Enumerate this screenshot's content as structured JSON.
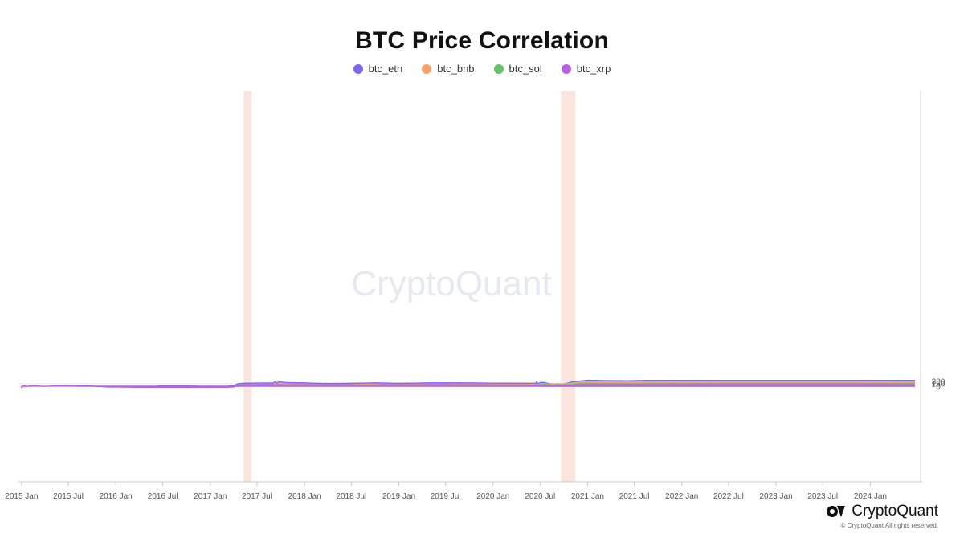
{
  "chart_data": {
    "type": "area",
    "title": "BTC Price Correlation",
    "xlabel": "",
    "ylabel": "",
    "ylim": [
      -55,
      170
    ],
    "xlim": [
      "2014-12-20",
      "2024-07-20"
    ],
    "y_ticks": [
      0,
      150,
      300
    ],
    "x_ticks": [
      "2015 Jan",
      "2015 Jul",
      "2016 Jan",
      "2016 Jul",
      "2017 Jan",
      "2017 Jul",
      "2018 Jan",
      "2018 Jul",
      "2019 Jan",
      "2019 Jul",
      "2020 Jan",
      "2020 Jul",
      "2021 Jan",
      "2021 Jul",
      "2022 Jan",
      "2022 Jul",
      "2023 Jan",
      "2023 Jul",
      "2024 Jan"
    ],
    "x_tick_dates": [
      "2015-01-01",
      "2015-07-01",
      "2016-01-01",
      "2016-07-01",
      "2017-01-01",
      "2017-07-01",
      "2018-01-01",
      "2018-07-01",
      "2019-01-01",
      "2019-07-01",
      "2020-01-01",
      "2020-07-01",
      "2021-01-01",
      "2021-07-01",
      "2022-01-01",
      "2022-07-01",
      "2023-01-01",
      "2023-07-01",
      "2024-01-01"
    ],
    "stacked": true,
    "grid": true,
    "legend_position": "top-center",
    "highlight_bands": [
      [
        "2017-05-10",
        "2017-06-10"
      ],
      [
        "2020-09-20",
        "2020-11-15"
      ]
    ],
    "highlight_color": "#f9e0d8",
    "series": [
      {
        "name": "btc_eth",
        "color": "#7b68ee",
        "points": [
          [
            "2015-08-01",
            0
          ],
          [
            "2015-08-06",
            0.42
          ],
          [
            "2015-08-10",
            0.26
          ],
          [
            "2015-08-20",
            0.25
          ],
          [
            "2015-09-01",
            0.31
          ],
          [
            "2015-09-15",
            0.28
          ],
          [
            "2015-10-01",
            0.05
          ],
          [
            "2015-10-20",
            -0.15
          ],
          [
            "2015-11-15",
            -0.35
          ],
          [
            "2015-12-15",
            -0.53
          ],
          [
            "2016-01-10",
            -0.45
          ],
          [
            "2016-02-15",
            -0.5
          ],
          [
            "2016-04-01",
            -0.6
          ],
          [
            "2016-05-15",
            -0.3
          ],
          [
            "2016-06-15",
            0.12
          ],
          [
            "2016-08-01",
            0.14
          ],
          [
            "2016-10-01",
            0.13
          ],
          [
            "2016-11-01",
            0.05
          ],
          [
            "2016-12-01",
            0
          ],
          [
            "2017-01-01",
            0.02
          ],
          [
            "2017-02-15",
            -0.05
          ],
          [
            "2017-03-10",
            0.02
          ],
          [
            "2017-04-01",
            0.45
          ],
          [
            "2017-04-20",
            1.5
          ],
          [
            "2017-05-15",
            1.7
          ],
          [
            "2017-06-30",
            1.83
          ],
          [
            "2017-08-01",
            1.87
          ],
          [
            "2017-09-01",
            1.85
          ],
          [
            "2017-09-10",
            2.8
          ],
          [
            "2017-09-15",
            1.6
          ],
          [
            "2017-09-22",
            2.6
          ],
          [
            "2017-09-27",
            2.7
          ],
          [
            "2017-10-10",
            2.3
          ],
          [
            "2017-11-01",
            2.05
          ],
          [
            "2017-12-01",
            1.97
          ],
          [
            "2018-01-01",
            1.9
          ],
          [
            "2018-02-01",
            1.75
          ],
          [
            "2018-03-01",
            1.62
          ],
          [
            "2018-04-15",
            1.6
          ],
          [
            "2018-06-01",
            1.62
          ],
          [
            "2018-08-01",
            1.73
          ],
          [
            "2018-09-01",
            1.85
          ],
          [
            "2018-10-01",
            1.92
          ],
          [
            "2018-11-01",
            1.88
          ],
          [
            "2018-12-01",
            1.75
          ],
          [
            "2019-01-15",
            1.7
          ],
          [
            "2019-03-01",
            1.77
          ],
          [
            "2019-05-01",
            1.9
          ],
          [
            "2019-07-01",
            1.9
          ],
          [
            "2019-09-01",
            1.92
          ],
          [
            "2019-11-01",
            1.87
          ],
          [
            "2020-01-01",
            1.8
          ],
          [
            "2020-03-01",
            1.72
          ],
          [
            "2020-05-01",
            1.7
          ],
          [
            "2020-06-15",
            1.72
          ],
          [
            "2020-06-18",
            2.75
          ],
          [
            "2020-06-22",
            1.45
          ],
          [
            "2020-07-01",
            2.1
          ],
          [
            "2020-07-15",
            2.25
          ],
          [
            "2020-08-01",
            1.6
          ],
          [
            "2020-08-20",
            1.2
          ],
          [
            "2020-09-01",
            1.35
          ],
          [
            "2020-10-01",
            1.3
          ],
          [
            "2020-11-01",
            2.4
          ],
          [
            "2020-12-01",
            3.0
          ],
          [
            "2021-01-01",
            3.45
          ],
          [
            "2021-02-01",
            3.35
          ],
          [
            "2021-03-01",
            3.25
          ],
          [
            "2021-04-01",
            3.22
          ],
          [
            "2021-05-01",
            3.2
          ],
          [
            "2021-06-01",
            3.12
          ],
          [
            "2021-06-20",
            3.15
          ],
          [
            "2021-07-15",
            3.3
          ],
          [
            "2021-09-01",
            3.38
          ],
          [
            "2021-11-01",
            3.38
          ],
          [
            "2022-01-01",
            3.38
          ],
          [
            "2022-06-01",
            3.39
          ],
          [
            "2023-01-01",
            3.4
          ],
          [
            "2023-06-01",
            3.4
          ],
          [
            "2024-01-01",
            3.4
          ],
          [
            "2024-04-01",
            3.38
          ],
          [
            "2024-06-20",
            3.36
          ]
        ]
      },
      {
        "name": "btc_bnb",
        "color": "#f4a268",
        "points": [
          [
            "2017-09-01",
            0.85
          ],
          [
            "2017-09-08",
            1.6
          ],
          [
            "2017-09-13",
            0.8
          ],
          [
            "2017-09-22",
            1.7
          ],
          [
            "2017-10-05",
            1.35
          ],
          [
            "2017-11-01",
            1.1
          ],
          [
            "2017-12-01",
            1.05
          ],
          [
            "2018-01-01",
            0.98
          ],
          [
            "2018-02-01",
            0.9
          ],
          [
            "2018-03-01",
            0.75
          ],
          [
            "2018-04-15",
            0.72
          ],
          [
            "2018-06-01",
            0.78
          ],
          [
            "2018-07-01",
            0.82
          ],
          [
            "2018-08-01",
            0.98
          ],
          [
            "2018-09-01",
            1.07
          ],
          [
            "2018-10-01",
            1.02
          ],
          [
            "2018-11-01",
            0.9
          ],
          [
            "2018-12-01",
            0.85
          ],
          [
            "2019-01-01",
            0.95
          ],
          [
            "2019-02-01",
            1.0
          ],
          [
            "2019-03-01",
            1.08
          ],
          [
            "2019-04-01",
            1.03
          ],
          [
            "2019-05-01",
            0.92
          ],
          [
            "2019-06-01",
            0.82
          ],
          [
            "2019-07-01",
            0.95
          ],
          [
            "2019-08-01",
            1.07
          ],
          [
            "2019-10-01",
            1.12
          ],
          [
            "2019-12-01",
            1.12
          ],
          [
            "2020-02-01",
            1.08
          ],
          [
            "2020-04-01",
            1.05
          ],
          [
            "2020-06-01",
            1.07
          ],
          [
            "2020-06-18",
            0.4
          ],
          [
            "2020-07-01",
            1.1
          ],
          [
            "2020-07-15",
            1.5
          ],
          [
            "2020-08-01",
            1.3
          ],
          [
            "2020-09-01",
            1.2
          ],
          [
            "2020-10-01",
            1.3
          ],
          [
            "2020-11-01",
            1.8
          ],
          [
            "2020-12-01",
            2.3
          ],
          [
            "2021-01-01",
            2.45
          ],
          [
            "2021-02-01",
            2.35
          ],
          [
            "2021-04-01",
            2.3
          ],
          [
            "2021-05-15",
            2.28
          ],
          [
            "2021-06-15",
            2.2
          ],
          [
            "2021-07-15",
            2.3
          ],
          [
            "2021-09-01",
            2.4
          ],
          [
            "2021-11-01",
            2.43
          ],
          [
            "2022-06-01",
            2.43
          ],
          [
            "2023-06-01",
            2.44
          ],
          [
            "2024-01-01",
            2.43
          ],
          [
            "2024-06-20",
            2.39
          ]
        ]
      },
      {
        "name": "btc_sol",
        "color": "#66c266",
        "points": [
          [
            "2020-07-01",
            0.75
          ],
          [
            "2020-07-15",
            1.15
          ],
          [
            "2020-08-01",
            0.8
          ],
          [
            "2020-09-01",
            0.75
          ],
          [
            "2020-10-01",
            0.75
          ],
          [
            "2020-11-01",
            0.95
          ],
          [
            "2020-12-01",
            1.45
          ],
          [
            "2021-01-01",
            1.62
          ],
          [
            "2021-02-01",
            1.55
          ],
          [
            "2021-04-01",
            1.52
          ],
          [
            "2021-05-15",
            1.5
          ],
          [
            "2021-06-15",
            1.33
          ],
          [
            "2021-07-15",
            1.4
          ],
          [
            "2021-09-01",
            1.52
          ],
          [
            "2021-11-01",
            1.53
          ],
          [
            "2022-06-01",
            1.53
          ],
          [
            "2023-06-01",
            1.55
          ],
          [
            "2024-01-01",
            1.57
          ],
          [
            "2024-06-20",
            1.52
          ]
        ]
      },
      {
        "name": "btc_xrp",
        "color": "#b95fe0",
        "points": [
          [
            "2015-01-01",
            -0.9
          ],
          [
            "2015-01-02",
            -1.0
          ],
          [
            "2015-01-05",
            -0.2
          ],
          [
            "2015-01-08",
            0.35
          ],
          [
            "2015-01-11",
            -0.3
          ],
          [
            "2015-01-14",
            0.6
          ],
          [
            "2015-01-18",
            -0.3
          ],
          [
            "2015-02-01",
            0.2
          ],
          [
            "2015-02-20",
            0.3
          ],
          [
            "2015-03-10",
            0.05
          ],
          [
            "2015-04-01",
            -0.1
          ],
          [
            "2015-05-01",
            0.15
          ],
          [
            "2015-06-01",
            0.25
          ],
          [
            "2015-07-01",
            0.2
          ],
          [
            "2015-08-01",
            0.05
          ],
          [
            "2015-09-01",
            0.04
          ],
          [
            "2015-10-01",
            0.05
          ],
          [
            "2015-10-20",
            0
          ],
          [
            "2015-11-15",
            -0.12
          ],
          [
            "2015-12-15",
            -0.3
          ],
          [
            "2016-01-15",
            -0.5
          ],
          [
            "2016-03-01",
            -0.55
          ],
          [
            "2016-05-01",
            -0.6
          ],
          [
            "2016-07-01",
            -0.65
          ],
          [
            "2016-10-01",
            -0.67
          ],
          [
            "2017-01-01",
            -0.68
          ],
          [
            "2017-03-01",
            -0.65
          ],
          [
            "2017-04-01",
            -0.5
          ],
          [
            "2017-04-20",
            0.5
          ],
          [
            "2017-05-15",
            0.8
          ],
          [
            "2017-07-01",
            0.87
          ],
          [
            "2017-08-15",
            0.9
          ],
          [
            "2017-09-10",
            0.88
          ],
          [
            "2017-09-25",
            0.8
          ],
          [
            "2017-11-01",
            0.85
          ],
          [
            "2018-01-01",
            0.87
          ],
          [
            "2018-06-01",
            0.88
          ],
          [
            "2018-08-01",
            0.66
          ],
          [
            "2018-10-01",
            0.72
          ],
          [
            "2018-11-01",
            0.85
          ],
          [
            "2019-01-01",
            0.88
          ],
          [
            "2019-06-01",
            0.87
          ],
          [
            "2019-09-01",
            0.86
          ],
          [
            "2019-12-01",
            0.85
          ],
          [
            "2020-03-01",
            0.72
          ],
          [
            "2020-05-01",
            0.7
          ],
          [
            "2020-06-18",
            0.25
          ],
          [
            "2020-07-01",
            0.68
          ],
          [
            "2020-08-01",
            0.3
          ],
          [
            "2020-09-01",
            0.15
          ],
          [
            "2020-10-01",
            0.1
          ],
          [
            "2020-11-01",
            0.6
          ],
          [
            "2020-12-01",
            0.78
          ],
          [
            "2021-01-01",
            0.82
          ],
          [
            "2021-06-01",
            0.88
          ],
          [
            "2021-12-01",
            0.92
          ],
          [
            "2022-06-01",
            0.93
          ],
          [
            "2023-06-01",
            0.93
          ],
          [
            "2024-01-01",
            0.93
          ],
          [
            "2024-04-01",
            0.88
          ],
          [
            "2024-06-20",
            0.77
          ]
        ]
      }
    ]
  },
  "watermark": "CryptoQuant",
  "brand": {
    "name": "CryptoQuant",
    "copyright": "© CryptoQuant All rights reserved."
  }
}
